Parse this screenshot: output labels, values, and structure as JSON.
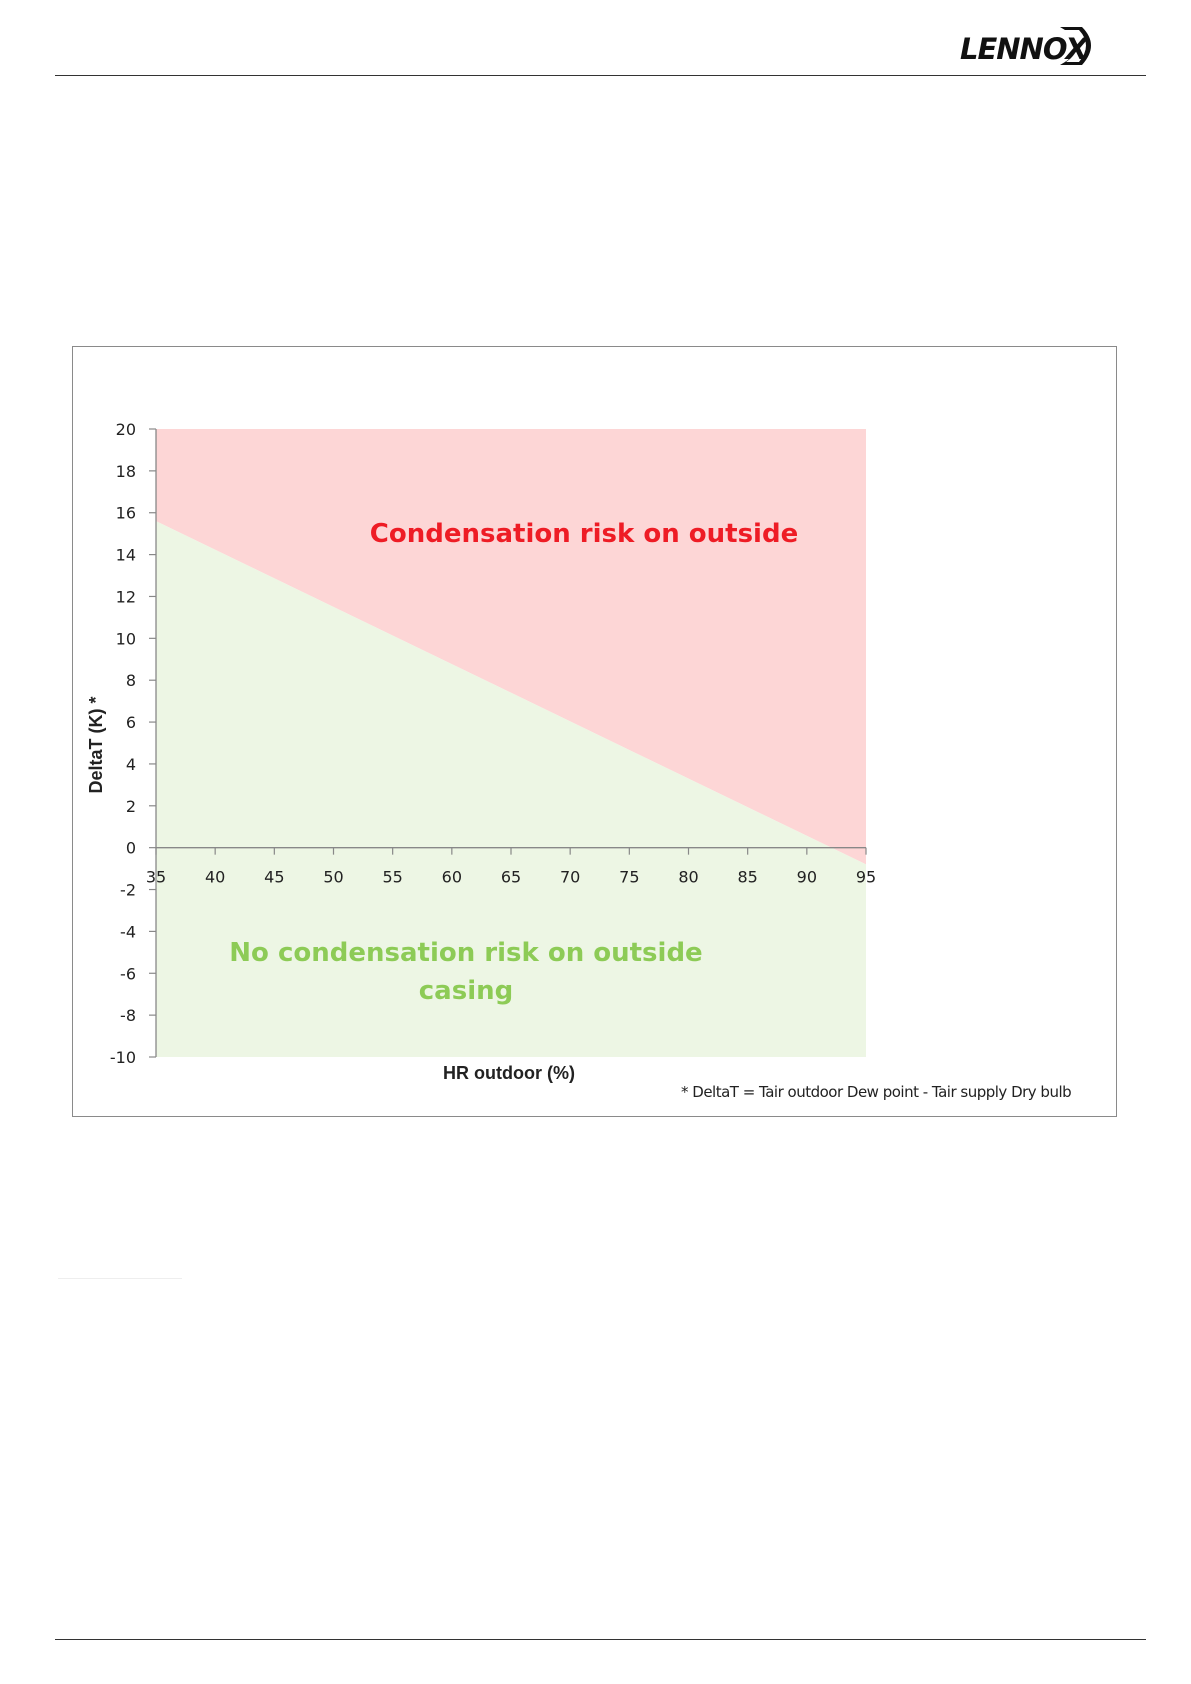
{
  "header": {
    "logo_text": "LENNOX"
  },
  "chart_data": {
    "type": "area",
    "xlabel": "HR outdoor (%)",
    "ylabel": "DeltaT (K) *",
    "xlim": [
      35,
      95
    ],
    "ylim": [
      -10,
      20
    ],
    "x_ticks": [
      35,
      40,
      45,
      50,
      55,
      60,
      65,
      70,
      75,
      80,
      85,
      90,
      95
    ],
    "y_ticks": [
      20,
      18,
      16,
      14,
      12,
      10,
      8,
      6,
      4,
      2,
      0,
      -2,
      -4,
      -6,
      -8,
      -10
    ],
    "boundary": {
      "x": [
        35,
        95
      ],
      "y": [
        15.6,
        -0.8
      ]
    },
    "regions": {
      "upper_label": "Condensation risk on outside",
      "lower_label_line1": "No condensation risk on outside",
      "lower_label_line2": "casing"
    },
    "footnote": "* DeltaT = Tair outdoor Dew point - Tair supply Dry bulb",
    "colors": {
      "upper_fill": "#fdd6d6",
      "lower_fill": "#edf6e4",
      "upper_text": "#ee1c25",
      "lower_text": "#8dcb56",
      "axis": "#888888",
      "tick_text": "#222222"
    }
  }
}
